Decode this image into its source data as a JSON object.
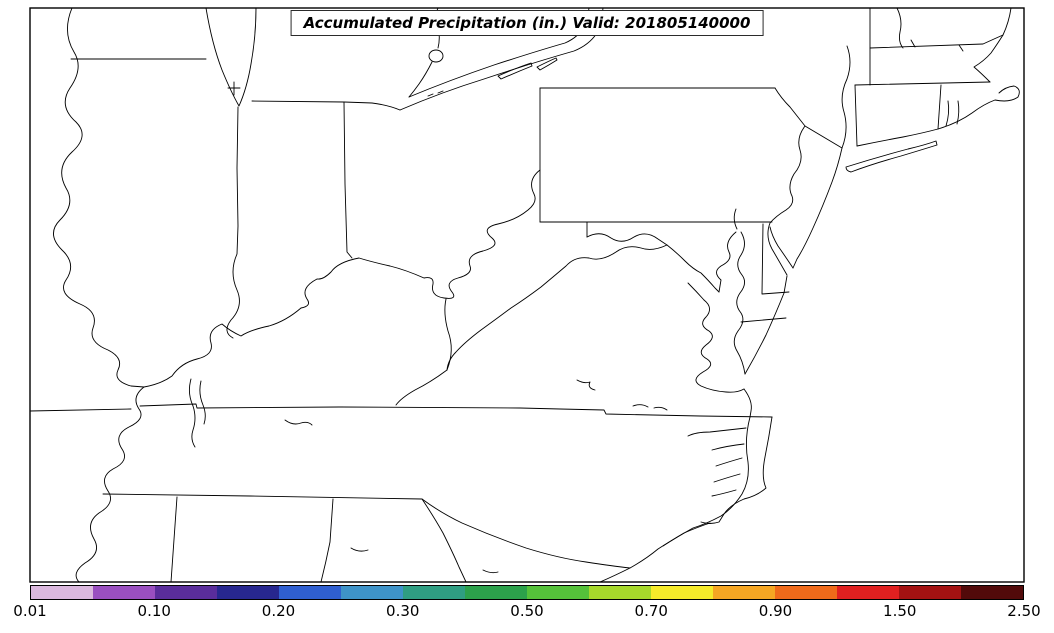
{
  "title": {
    "text": "Accumulated Precipitation (in.) Valid: 201805140000"
  },
  "map": {
    "land_color": "#ffffff",
    "boundary_color": "#000000"
  },
  "colorbar": {
    "ticks": [
      "0.01",
      "0.10",
      "0.20",
      "0.30",
      "0.50",
      "0.70",
      "0.90",
      "1.50",
      "2.50"
    ],
    "levels": [
      0.01,
      0.05,
      0.1,
      0.15,
      0.2,
      0.25,
      0.3,
      0.4,
      0.5,
      0.6,
      0.7,
      0.8,
      0.9,
      1.2,
      1.5,
      2.0,
      2.5
    ],
    "colors": [
      "#dbb8de",
      "#9a4fc0",
      "#5a2d9b",
      "#27278f",
      "#2f5fd0",
      "#3e93c8",
      "#2f9e82",
      "#2ca14b",
      "#55c13a",
      "#a6d82b",
      "#f5ea2a",
      "#f5a623",
      "#ef6a1a",
      "#e02020",
      "#a31212",
      "#520a0a"
    ]
  }
}
